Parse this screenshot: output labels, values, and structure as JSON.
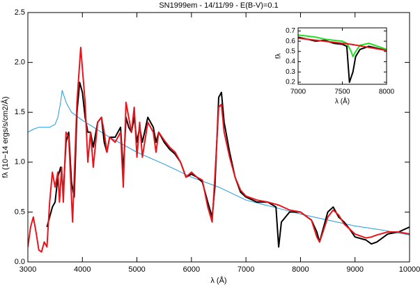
{
  "chart_data": [
    {
      "type": "line",
      "title": "SN1999em - 14/11/99 - E(B-V)=0.1",
      "x_label": "λ (Å)",
      "y_label": "fλ (10−14 ergs/s/cm2/Å)",
      "xlim": [
        3000,
        10000
      ],
      "ylim": [
        0,
        2.5
      ],
      "xticks": [
        3000,
        4000,
        5000,
        6000,
        7000,
        8000,
        9000,
        10000
      ],
      "yticks": [
        {
          "value": 0,
          "label": "0.0"
        },
        0.5,
        {
          "value": 1,
          "label": "1.0"
        },
        1.5,
        {
          "value": 2,
          "label": "2.0"
        },
        2.5
      ],
      "series": [
        {
          "color": "#1e9be0",
          "x": [
            3000,
            3100,
            3200,
            3300,
            3400,
            3500,
            3550,
            3600,
            3630,
            3700,
            3800,
            4000,
            4500,
            5000,
            5500,
            6000,
            6500,
            7000,
            7500,
            8000,
            8500,
            9000,
            9500,
            10000
          ],
          "values": [
            1.3,
            1.33,
            1.35,
            1.35,
            1.35,
            1.38,
            1.45,
            1.6,
            1.72,
            1.6,
            1.5,
            1.42,
            1.25,
            1.1,
            0.98,
            0.85,
            0.75,
            0.62,
            0.55,
            0.48,
            0.42,
            0.36,
            0.32,
            0.27
          ]
        },
        {
          "color": "#000000",
          "x": [
            3350,
            3400,
            3450,
            3500,
            3550,
            3600,
            3650,
            3700,
            3750,
            3800,
            3850,
            3900,
            3950,
            4000,
            4050,
            4100,
            4150,
            4200,
            4280,
            4350,
            4400,
            4450,
            4500,
            4600,
            4700,
            4750,
            4800,
            4850,
            4900,
            4950,
            5000,
            5050,
            5100,
            5200,
            5300,
            5350,
            5400,
            5500,
            5600,
            5700,
            5800,
            5900,
            6000,
            6100,
            6200,
            6300,
            6380,
            6430,
            6500,
            6550,
            6600,
            6700,
            6800,
            6900,
            7000,
            7200,
            7400,
            7550,
            7600,
            7650,
            7800,
            8000,
            8200,
            8300,
            8350,
            8400,
            8500,
            8600,
            8700,
            8800,
            8900,
            9000,
            9200,
            9300,
            9400,
            9600,
            9800,
            10000
          ],
          "values": [
            0.35,
            0.45,
            0.55,
            0.6,
            0.85,
            0.95,
            0.7,
            1.2,
            1.3,
            0.8,
            0.65,
            1.5,
            1.8,
            1.7,
            1.45,
            1.3,
            1.3,
            1.15,
            1.4,
            1.45,
            1.2,
            1.1,
            1.25,
            1.25,
            1.35,
            0.9,
            1.45,
            1.35,
            1.3,
            1.45,
            1.2,
            1.35,
            1.2,
            1.45,
            1.35,
            1.2,
            1.3,
            1.2,
            1.13,
            1.08,
            1.0,
            0.85,
            0.88,
            0.85,
            0.8,
            0.6,
            0.45,
            0.75,
            1.65,
            1.7,
            1.4,
            1.1,
            0.85,
            0.7,
            0.65,
            0.6,
            0.6,
            0.55,
            0.15,
            0.4,
            0.5,
            0.5,
            0.42,
            0.3,
            0.2,
            0.3,
            0.5,
            0.55,
            0.45,
            0.4,
            0.33,
            0.25,
            0.22,
            0.18,
            0.2,
            0.28,
            0.3,
            0.35
          ]
        },
        {
          "color": "#e8141a",
          "x": [
            3000,
            3050,
            3100,
            3150,
            3200,
            3250,
            3300,
            3350,
            3400,
            3450,
            3500,
            3550,
            3580,
            3620,
            3650,
            3700,
            3750,
            3820,
            3900,
            3970,
            4050,
            4100,
            4150,
            4200,
            4280,
            4350,
            4400,
            4450,
            4500,
            4600,
            4700,
            4750,
            4800,
            4850,
            4900,
            4950,
            5000,
            5050,
            5100,
            5200,
            5300,
            5350,
            5400,
            5500,
            5600,
            5700,
            5800,
            5900,
            6000,
            6100,
            6200,
            6300,
            6380,
            6430,
            6500,
            6550,
            6600,
            6700,
            6800,
            6900,
            7000,
            7200,
            7400,
            7600,
            7800,
            8000,
            8200,
            8300,
            8350,
            8400,
            8500,
            8600,
            8700,
            8800,
            8900,
            9000,
            9200,
            9300,
            9400,
            9600,
            9800,
            10000
          ],
          "values": [
            0.15,
            0.35,
            0.45,
            0.3,
            0.12,
            0.1,
            0.2,
            0.15,
            0.6,
            0.9,
            0.75,
            0.9,
            0.6,
            0.95,
            0.6,
            1.3,
            1.25,
            0.4,
            1.6,
            2.15,
            1.6,
            1.0,
            1.3,
            0.95,
            1.4,
            1.45,
            1.3,
            1.1,
            1.25,
            1.2,
            1.3,
            0.75,
            1.6,
            1.45,
            1.3,
            1.55,
            1.05,
            1.4,
            1.05,
            1.4,
            1.3,
            1.1,
            1.3,
            1.22,
            1.15,
            1.1,
            1.0,
            0.85,
            0.9,
            0.85,
            0.82,
            0.55,
            0.4,
            0.85,
            1.55,
            1.58,
            1.3,
            1.05,
            0.85,
            0.72,
            0.66,
            0.62,
            0.6,
            0.57,
            0.52,
            0.5,
            0.42,
            0.25,
            0.2,
            0.28,
            0.45,
            0.52,
            0.47,
            0.38,
            0.33,
            0.28,
            0.24,
            0.25,
            0.27,
            0.3,
            0.3,
            0.28
          ]
        }
      ]
    },
    {
      "type": "line",
      "x_label": "λ (Å)",
      "y_label": "fλ",
      "xlim": [
        7000,
        8000
      ],
      "ylim": [
        0.18,
        0.73
      ],
      "xticks": [
        7000,
        7500,
        8000
      ],
      "yticks": [
        0.2,
        0.3,
        0.4,
        0.5,
        0.6,
        0.7
      ],
      "series": [
        {
          "color": "#000000",
          "x": [
            7000,
            7100,
            7200,
            7300,
            7400,
            7500,
            7550,
            7580,
            7620,
            7650,
            7700,
            7800,
            7900,
            8000
          ],
          "values": [
            0.64,
            0.62,
            0.6,
            0.61,
            0.58,
            0.57,
            0.55,
            0.2,
            0.3,
            0.45,
            0.52,
            0.55,
            0.53,
            0.51
          ]
        },
        {
          "color": "#22dd22",
          "x": [
            7000,
            7100,
            7200,
            7300,
            7400,
            7500,
            7550,
            7600,
            7620,
            7650,
            7700,
            7800,
            7900,
            8000
          ],
          "values": [
            0.66,
            0.65,
            0.64,
            0.62,
            0.61,
            0.6,
            0.58,
            0.5,
            0.45,
            0.5,
            0.56,
            0.58,
            0.55,
            0.52
          ]
        },
        {
          "color": "#e8141a",
          "x": [
            7000,
            7200,
            7400,
            7600,
            7800,
            8000
          ],
          "values": [
            0.63,
            0.61,
            0.59,
            0.57,
            0.54,
            0.51
          ]
        }
      ]
    }
  ]
}
